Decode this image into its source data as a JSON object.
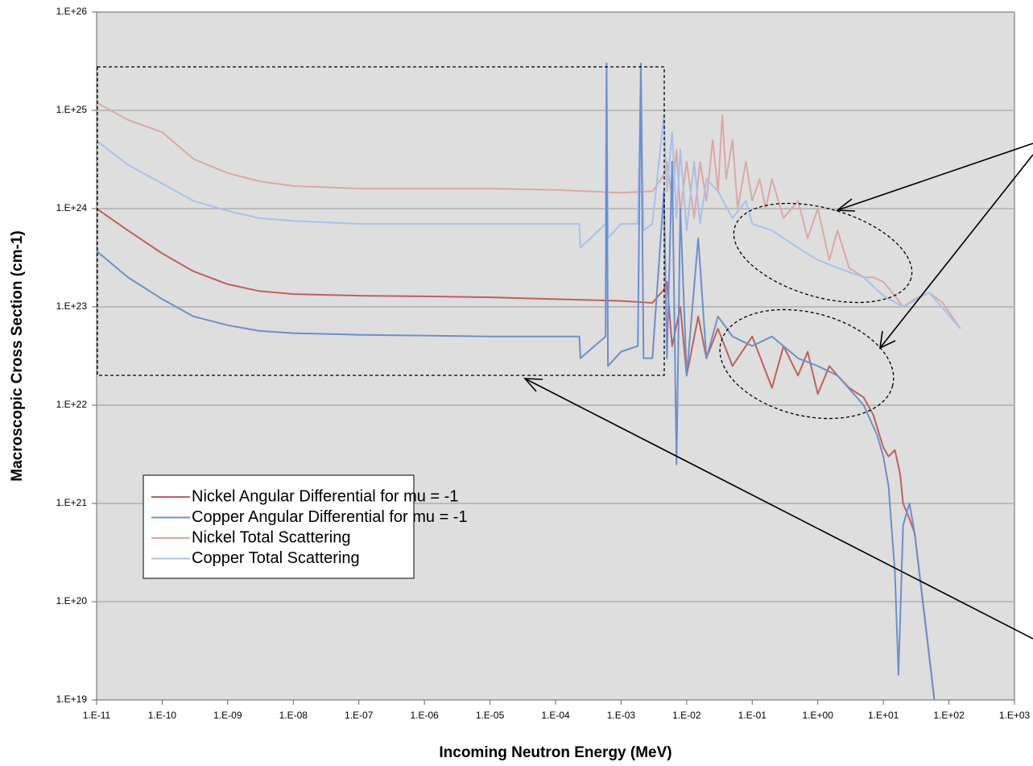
{
  "chart_data": {
    "type": "line",
    "xlabel": "Incoming Neutron Energy (MeV)",
    "ylabel": "Macroscopic Cross Section (cm-1)",
    "xscale": "log",
    "yscale": "log",
    "grid": true,
    "legend": "lower left",
    "xlim": [
      1e-11,
      1000
    ],
    "xticks": [
      {
        "value": 1e-11,
        "label": "1.E-11"
      },
      {
        "value": 1e-10,
        "label": "1.E-10"
      },
      {
        "value": 1e-09,
        "label": "1.E-09"
      },
      {
        "value": 1e-08,
        "label": "1.E-08"
      },
      {
        "value": 1e-07,
        "label": "1.E-07"
      },
      {
        "value": 1e-06,
        "label": "1.E-06"
      },
      {
        "value": 1e-05,
        "label": "1.E-05"
      },
      {
        "value": 0.0001,
        "label": "1.E-04"
      },
      {
        "value": 0.001,
        "label": "1.E-03"
      },
      {
        "value": 0.01,
        "label": "1.E-02"
      },
      {
        "value": 0.1,
        "label": "1.E-01"
      },
      {
        "value": 1,
        "label": "1.E+00"
      },
      {
        "value": 10,
        "label": "1.E+01"
      },
      {
        "value": 100,
        "label": "1.E+02"
      },
      {
        "value": 1000,
        "label": "1.E+03"
      }
    ],
    "ylim": [
      1e+19,
      1e+26
    ],
    "yticks": [
      {
        "value": 1e+19,
        "label": "1.E+19"
      },
      {
        "value": 1e+20,
        "label": "1.E+20"
      },
      {
        "value": 1e+21,
        "label": "1.E+21"
      },
      {
        "value": 1e+22,
        "label": "1.E+22"
      },
      {
        "value": 1e+23,
        "label": "1.E+23"
      },
      {
        "value": 1e+24,
        "label": "1.E+24"
      },
      {
        "value": 1e+25,
        "label": "1.E+25"
      },
      {
        "value": 1e+26,
        "label": "1.E+26"
      }
    ],
    "series": [
      {
        "name": "Nickel Angular Differential for mu = -1",
        "color": "#c0605b",
        "x": [
          1e-11,
          3e-11,
          1e-10,
          3e-10,
          1e-09,
          3e-09,
          1e-08,
          1e-07,
          1e-06,
          1e-05,
          0.0001,
          0.001,
          0.003,
          0.0045,
          0.005,
          0.006,
          0.008,
          0.01,
          0.015,
          0.02,
          0.03,
          0.05,
          0.1,
          0.2,
          0.3,
          0.5,
          0.7,
          1,
          1.5,
          2,
          3,
          5,
          7,
          10,
          12,
          15,
          18,
          20,
          25,
          30,
          40,
          60
        ],
        "values": [
          1e+24,
          6e+23,
          3.5e+23,
          2.3e+23,
          1.7e+23,
          1.45e+23,
          1.35e+23,
          1.3e+23,
          1.28e+23,
          1.25e+23,
          1.2e+23,
          1.15e+23,
          1.1e+23,
          1.5e+23,
          1.8e+23,
          4e+22,
          1e+23,
          2e+22,
          8e+22,
          3e+22,
          6e+22,
          2.5e+22,
          5e+22,
          1.5e+22,
          4e+22,
          2e+22,
          3.5e+22,
          1.3e+22,
          2.5e+22,
          2e+22,
          1.5e+22,
          1.2e+22,
          8e+21,
          3.7e+21,
          3e+21,
          3.5e+21,
          2e+21,
          1e+21,
          7e+20,
          5e+20,
          1e+20,
          1e+19
        ]
      },
      {
        "name": "Copper Angular Differential for mu = -1",
        "color": "#6d8fcb",
        "x": [
          1e-11,
          3e-11,
          1e-10,
          3e-10,
          1e-09,
          3e-09,
          1e-08,
          1e-07,
          1e-06,
          1e-05,
          0.0001,
          0.00023,
          0.00024,
          0.00058,
          0.0006,
          0.00063,
          0.001,
          0.0018,
          0.002,
          0.0022,
          0.003,
          0.0045,
          0.005,
          0.006,
          0.007,
          0.008,
          0.01,
          0.015,
          0.02,
          0.03,
          0.05,
          0.1,
          0.2,
          0.5,
          1,
          2,
          5,
          8,
          10,
          12,
          15,
          17,
          20,
          25,
          30,
          40,
          60
        ],
        "values": [
          3.7e+23,
          2e+23,
          1.2e+23,
          8e+22,
          6.5e+22,
          5.7e+22,
          5.4e+22,
          5.2e+22,
          5.1e+22,
          5e+22,
          5e+22,
          5e+22,
          3e+22,
          5e+22,
          3e+25,
          2.5e+22,
          3.5e+22,
          4e+22,
          3e+25,
          3e+22,
          3e+22,
          1.5e+24,
          3e+22,
          3e+24,
          2.5e+21,
          1e+24,
          2e+22,
          5e+23,
          3e+22,
          8e+22,
          5e+22,
          4e+22,
          5e+22,
          3e+22,
          2.5e+22,
          2e+22,
          1e+22,
          5e+21,
          3e+21,
          1.5e+21,
          2e+20,
          1.8e+19,
          6e+20,
          1e+21,
          5e+20,
          1e+20,
          1e+19
        ]
      },
      {
        "name": "Nickel Total Scattering",
        "color": "#dba8a4",
        "x": [
          1e-11,
          3e-11,
          1e-10,
          3e-10,
          1e-09,
          3e-09,
          1e-08,
          1e-07,
          1e-06,
          1e-05,
          0.0001,
          0.001,
          0.003,
          0.0045,
          0.005,
          0.006,
          0.007,
          0.008,
          0.01,
          0.013,
          0.016,
          0.02,
          0.025,
          0.03,
          0.035,
          0.04,
          0.05,
          0.06,
          0.08,
          0.1,
          0.13,
          0.16,
          0.2,
          0.3,
          0.5,
          0.7,
          1,
          1.5,
          2,
          3,
          5,
          7,
          10,
          15,
          20,
          30,
          50,
          80,
          150
        ],
        "values": [
          1.2e+25,
          8e+24,
          6e+24,
          3.2e+24,
          2.3e+24,
          1.9e+24,
          1.7e+24,
          1.6e+24,
          1.6e+24,
          1.6e+24,
          1.55e+24,
          1.45e+24,
          1.5e+24,
          2.2e+24,
          3e+24,
          1.2e+24,
          4e+24,
          9e+23,
          3e+24,
          8e+23,
          3e+24,
          1.2e+24,
          5e+24,
          1.5e+24,
          9e+24,
          2e+24,
          5e+24,
          1e+24,
          3e+24,
          1.2e+24,
          2e+24,
          1e+24,
          2e+24,
          8e+23,
          1.2e+24,
          5e+23,
          1e+24,
          3e+23,
          6e+23,
          2.5e+23,
          2e+23,
          2e+23,
          1.8e+23,
          1.3e+23,
          1e+23,
          1.2e+23,
          1.4e+23,
          1.1e+23,
          6e+22
        ]
      },
      {
        "name": "Copper Total Scattering",
        "color": "#a8c0eb",
        "x": [
          1e-11,
          3e-11,
          1e-10,
          3e-10,
          1e-09,
          3e-09,
          1e-08,
          1e-07,
          1e-06,
          1e-05,
          0.0001,
          0.00023,
          0.00024,
          0.00058,
          0.0006,
          0.00063,
          0.001,
          0.0018,
          0.002,
          0.0022,
          0.003,
          0.0045,
          0.005,
          0.006,
          0.007,
          0.008,
          0.01,
          0.013,
          0.016,
          0.02,
          0.03,
          0.05,
          0.08,
          0.1,
          0.2,
          0.3,
          0.5,
          1,
          2,
          5,
          10,
          20,
          50,
          150
        ],
        "values": [
          4.9e+24,
          2.8e+24,
          1.8e+24,
          1.2e+24,
          9.5e+23,
          8e+23,
          7.5e+23,
          7e+23,
          7e+23,
          7e+23,
          7e+23,
          7e+23,
          4e+23,
          7e+23,
          3e+25,
          5e+23,
          7e+23,
          7e+23,
          3e+25,
          6e+23,
          7e+23,
          9e+24,
          1.5e+24,
          6e+24,
          8e+23,
          4e+24,
          6e+23,
          3e+24,
          7e+23,
          2e+24,
          1.5e+24,
          8e+23,
          1.2e+24,
          7e+23,
          6e+23,
          5e+23,
          4e+23,
          3e+23,
          2.5e+23,
          2e+23,
          1.3e+23,
          1e+23,
          1.4e+23,
          6e+22
        ]
      }
    ]
  }
}
